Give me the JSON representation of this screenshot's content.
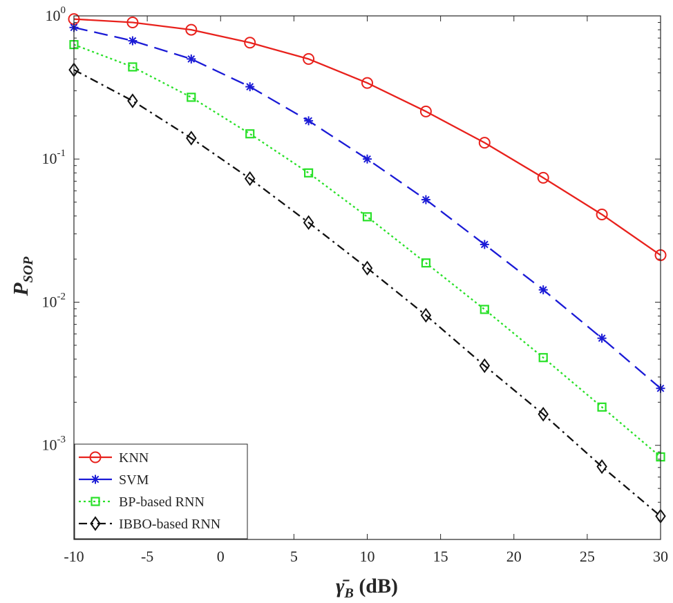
{
  "chart_data": {
    "type": "line",
    "yscale": "log",
    "xlim": [
      -10,
      30
    ],
    "ylim": [
      0.00022,
      1
    ],
    "grid": false,
    "legend_position": "bottom-left",
    "xlabel": {
      "main": "γ̄",
      "sub": "B",
      "unit": " (dB)"
    },
    "ylabel": {
      "main": "P",
      "sub": "SOP"
    },
    "xticks": [
      -10,
      -5,
      0,
      5,
      10,
      15,
      20,
      25,
      30
    ],
    "xtick_labels": [
      "-10",
      "-5",
      "0",
      "5",
      "10",
      "15",
      "20",
      "25",
      "30"
    ],
    "yticks": [
      1,
      0.1,
      0.01,
      0.001
    ],
    "ytick_labels": [
      {
        "base": "10",
        "exp": "0"
      },
      {
        "base": "10",
        "exp": "-1"
      },
      {
        "base": "10",
        "exp": "-2"
      },
      {
        "base": "10",
        "exp": "-3"
      }
    ],
    "x": [
      -10,
      -6,
      -2,
      2,
      6,
      10,
      14,
      18,
      22,
      26,
      30
    ],
    "series": [
      {
        "name": "KNN",
        "color": "#e8211c",
        "dash": "solid",
        "marker": "circle",
        "values": [
          0.95,
          0.9,
          0.8,
          0.65,
          0.5,
          0.34,
          0.215,
          0.13,
          0.074,
          0.041,
          0.0213
        ]
      },
      {
        "name": "SVM",
        "color": "#1a1ad6",
        "dash": "dashed",
        "marker": "asterisk",
        "values": [
          0.83,
          0.67,
          0.5,
          0.32,
          0.185,
          0.1,
          0.052,
          0.0253,
          0.0122,
          0.0056,
          0.0025
        ]
      },
      {
        "name": "BP-based RNN",
        "color": "#28e028",
        "dash": "dotted",
        "marker": "square",
        "values": [
          0.63,
          0.44,
          0.27,
          0.15,
          0.08,
          0.0395,
          0.0188,
          0.0089,
          0.0041,
          0.00185,
          0.00083
        ]
      },
      {
        "name": "IBBO-based RNN",
        "color": "#111111",
        "dash": "dashdot",
        "marker": "diamond",
        "values": [
          0.42,
          0.255,
          0.14,
          0.073,
          0.036,
          0.0173,
          0.0081,
          0.0036,
          0.00165,
          0.00071,
          0.00032
        ]
      }
    ]
  }
}
